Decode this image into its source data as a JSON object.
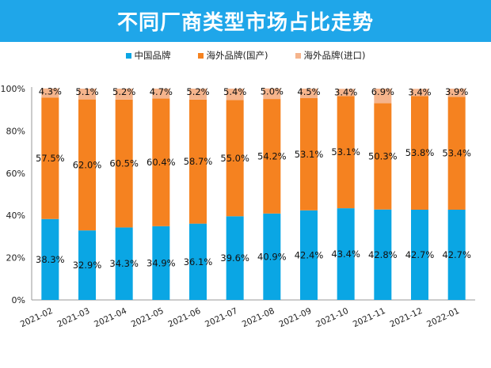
{
  "chart_data": {
    "type": "bar",
    "stacked": true,
    "title": "不同厂商类型市场占比走势",
    "categories": [
      "2021-02",
      "2021-03",
      "2021-04",
      "2021-05",
      "2021-06",
      "2021-07",
      "2021-08",
      "2021-09",
      "2021-10",
      "2021-11",
      "2021-12",
      "2022-01"
    ],
    "series": [
      {
        "name": "中国品牌",
        "color": "#0aa6e4",
        "values": [
          38.3,
          32.9,
          34.3,
          34.9,
          36.1,
          39.6,
          40.9,
          42.4,
          43.4,
          42.8,
          42.7,
          42.7
        ]
      },
      {
        "name": "海外品牌(国产)",
        "color": "#f58220",
        "values": [
          57.5,
          62.0,
          60.5,
          60.4,
          58.7,
          55.0,
          54.2,
          53.1,
          53.1,
          50.3,
          53.8,
          53.4
        ]
      },
      {
        "name": "海外品牌(进口)",
        "color": "#f5b48c",
        "values": [
          4.3,
          5.1,
          5.2,
          4.7,
          5.2,
          5.4,
          5.0,
          4.5,
          3.4,
          6.9,
          3.4,
          3.9
        ]
      }
    ],
    "y_ticks": [
      "0%",
      "20%",
      "40%",
      "60%",
      "80%",
      "100%"
    ],
    "ylim": [
      0,
      100
    ],
    "legend_position": "top"
  }
}
